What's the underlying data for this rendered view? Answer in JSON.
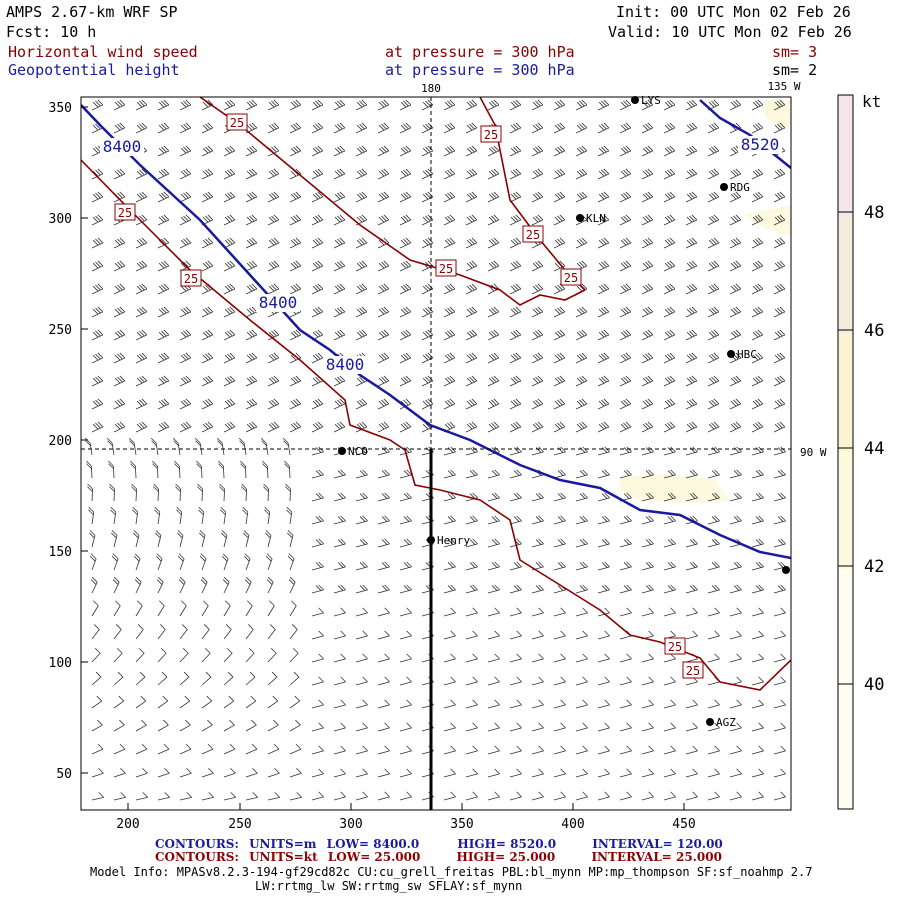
{
  "header": {
    "title": "AMPS 2.67-km WRF SP",
    "fcst": "Fcst:   10 h",
    "init": "Init: 00 UTC Mon 02 Feb 26",
    "valid": "Valid: 10 UTC Mon 02 Feb 26",
    "field1_name": "Horizontal wind speed",
    "field1_level": "at pressure =  300 hPa",
    "field1_sm": "sm= 3",
    "field2_name": "Geopotential height",
    "field2_level": "at pressure =  300 hPa",
    "field2_sm": "sm= 2"
  },
  "map": {
    "lon_labels": [
      "180",
      "135 W",
      "90 W"
    ],
    "stations": [
      "NCO",
      "Henry",
      "KLN",
      "RDG",
      "HBC",
      "AGZ",
      "LYS"
    ],
    "height_labels": [
      "8400",
      "8400",
      "8400",
      "8520"
    ],
    "speed_labels": [
      "25",
      "25",
      "25",
      "25",
      "25",
      "25",
      "25",
      "25",
      "25"
    ],
    "x_ticks": [
      "200",
      "250",
      "300",
      "350",
      "400",
      "450"
    ],
    "y_ticks": [
      "350",
      "300",
      "250",
      "200",
      "150",
      "100",
      "50"
    ]
  },
  "colorbar": {
    "unit": "kt",
    "labels": [
      "48",
      "46",
      "44",
      "42",
      "40"
    ],
    "colors": {
      "c48": "#f4e6ea",
      "c46": "#f6ebdf",
      "c44": "#fbf3d2",
      "c42": "#fdf9df",
      "c40": "#fffdf0"
    }
  },
  "footer": {
    "contours_height": {
      "label": "CONTOURS:",
      "units": "UNITS=m",
      "low": "LOW=  8400.0",
      "high": "HIGH=  8520.0",
      "interval": "INTERVAL=   120.00"
    },
    "contours_speed": {
      "label": "CONTOURS:",
      "units": "UNITS=kt",
      "low": "LOW=  25.000",
      "high": "HIGH=  25.000",
      "interval": "INTERVAL=   25.000"
    },
    "model_info": "Model Info: MPASv8.2.3-194-gf29cd82c CU:cu_grell_freitas PBL:bl_mynn MP:mp_thompson SF:sf_noahmp 2.7",
    "model_info2": "LW:rrtmg_lw SW:rrtmg_sw SFLAY:sf_mynn"
  },
  "colors": {
    "height_contour": "#1a1aa0",
    "speed_contour": "#8b0000"
  }
}
